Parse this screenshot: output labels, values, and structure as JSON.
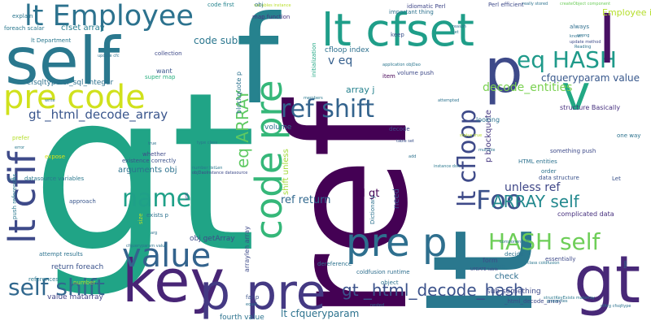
{
  "words": [
    {
      "text": "gt",
      "color": "#20a486"
    },
    {
      "text": "ref",
      "color": "#440154"
    },
    {
      "text": "lt",
      "color": "#2a788e"
    },
    {
      "text": "f",
      "color": "#26828e"
    },
    {
      "text": "lt Employee",
      "color": "#2c728e"
    },
    {
      "text": "self",
      "color": "#2a788e"
    },
    {
      "text": "pre code",
      "color": "#d0e11c"
    },
    {
      "text": "key",
      "color": "#482576"
    },
    {
      "text": "p pre",
      "color": "#443983"
    },
    {
      "text": "ref shift",
      "color": "#33638d"
    },
    {
      "text": "value",
      "color": "#33638d"
    },
    {
      "text": "code pre",
      "color": "#35b779"
    },
    {
      "text": "HASH self",
      "color": "#6ece58"
    },
    {
      "text": "Foo",
      "color": "#3b528b"
    },
    {
      "text": "name",
      "color": "#1fa088"
    },
    {
      "text": "lt cfif",
      "color": "#3e4a89"
    },
    {
      "text": "self shift",
      "color": "#31688e"
    },
    {
      "text": "lt cfset",
      "color": "#1f9e89"
    },
    {
      "text": "lt cfloop",
      "color": "#3e4a89"
    },
    {
      "text": "eq HASH",
      "color": "#1f9a8a"
    },
    {
      "text": "v",
      "color": "#22a884"
    },
    {
      "text": "p",
      "color": "#3e4a89"
    },
    {
      "text": "l",
      "color": "#471063"
    },
    {
      "text": "gt",
      "color": "#482878"
    },
    {
      "text": "gt _html_decode_array",
      "color": "#39558c"
    },
    {
      "text": "gt _html_decode_hash",
      "color": "#3b528b"
    },
    {
      "text": "pre p",
      "color": "#2e6f8e"
    },
    {
      "text": "ARRAY self",
      "color": "#23898e"
    },
    {
      "text": "eq ARRAY",
      "color": "#5ec962"
    },
    {
      "text": "cfqueryparam value",
      "color": "#38588c"
    },
    {
      "text": "decode_entities",
      "color": "#7ad151"
    },
    {
      "text": "unless ref",
      "color": "#3f4788"
    },
    {
      "text": "id gt",
      "color": "#440154"
    },
    {
      "text": "lt cfqueryparam",
      "color": "#2c728e"
    },
    {
      "text": "ref return",
      "color": "#31688e"
    },
    {
      "text": "obj getArray",
      "color": "#3e4c8a"
    },
    {
      "text": "arguments obj",
      "color": "#2c728e"
    },
    {
      "text": "value matarray",
      "color": "#414487"
    },
    {
      "text": "return foreach",
      "color": "#3b528b"
    },
    {
      "text": "code sub",
      "color": "#2a768e"
    },
    {
      "text": "cfset array",
      "color": "#287d8e"
    },
    {
      "text": "lt Department",
      "color": "#2a788e"
    },
    {
      "text": "cfsqltype cf_sql_integer",
      "color": "#2d708e"
    },
    {
      "text": "Employee id",
      "color": "#b5de2b"
    },
    {
      "text": "array j",
      "color": "#26828e"
    },
    {
      "text": "v eq",
      "color": "#355f8d"
    },
    {
      "text": "cfloop index",
      "color": "#2d708e"
    },
    {
      "text": "map function",
      "color": "#46327e"
    },
    {
      "text": "volume",
      "color": "#2c728e"
    },
    {
      "text": "need",
      "color": "#3b528b"
    },
    {
      "text": "shift unless",
      "color": "#a2da37"
    },
    {
      "text": "sub something",
      "color": "#3e4a89"
    },
    {
      "text": "fourth value",
      "color": "#2c728e"
    },
    {
      "text": "check",
      "color": "#2e6e8e"
    },
    {
      "text": "HTML entities",
      "color": "#2c728e"
    },
    {
      "text": "p blockquote",
      "color": "#453781"
    },
    {
      "text": "data structure",
      "color": "#3b528b"
    },
    {
      "text": "structure Basically",
      "color": "#46307e"
    },
    {
      "text": "idiomatic Perl",
      "color": "#3f4788"
    },
    {
      "text": "Perl efficient",
      "color": "#3e4a89"
    },
    {
      "text": "important thing",
      "color": "#2c728e"
    },
    {
      "text": "variables instance",
      "color": "#b8de29"
    },
    {
      "text": "code first",
      "color": "#25848e"
    },
    {
      "text": "createObject component",
      "color": "#6ccd5a"
    },
    {
      "text": "always",
      "color": "#2e6e8e"
    },
    {
      "text": "explain",
      "color": "#2a768e"
    },
    {
      "text": "foreach scalar",
      "color": "#2a788e"
    },
    {
      "text": "super map",
      "color": "#29af7f"
    },
    {
      "text": "want",
      "color": "#39558c"
    },
    {
      "text": "collection",
      "color": "#3e4a89"
    },
    {
      "text": "update cfc",
      "color": "#2c728e"
    },
    {
      "text": "initialization",
      "color": "#22a884"
    },
    {
      "text": "blockquote p",
      "color": "#2c728e"
    },
    {
      "text": "item",
      "color": "#440154"
    },
    {
      "text": "keep",
      "color": "#3b528b"
    },
    {
      "text": "obj",
      "color": "#2c728e"
    },
    {
      "text": "decode",
      "color": "#3e4a89"
    },
    {
      "text": "looking",
      "color": "#2c728e"
    },
    {
      "text": "prefer",
      "color": "#b5de2b"
    },
    {
      "text": "expose",
      "color": "#d8e219"
    },
    {
      "text": "whether",
      "color": "#3e4a89"
    },
    {
      "text": "existence correctly",
      "color": "#3b528b"
    },
    {
      "text": "type class",
      "color": "#2a768e"
    },
    {
      "text": "push references",
      "color": "#2a788e"
    },
    {
      "text": "list",
      "color": "#2c728e"
    },
    {
      "text": "datasource variables",
      "color": "#2a788e"
    },
    {
      "text": "approach",
      "color": "#39568c"
    },
    {
      "text": "exists p",
      "color": "#2c728e"
    },
    {
      "text": "size",
      "color": "#b8de29"
    },
    {
      "text": "number",
      "color": "#addc30"
    },
    {
      "text": "references",
      "color": "#2a788e"
    },
    {
      "text": "attempt results",
      "color": "#2c728e"
    },
    {
      "text": "arraylen array",
      "color": "#3e4a89"
    },
    {
      "text": "far p",
      "color": "#3b528b"
    },
    {
      "text": "coldfusion runtime",
      "color": "#2e6e8e"
    },
    {
      "text": "object",
      "color": "#2c728e"
    },
    {
      "text": "form",
      "color": "#3e4a89"
    },
    {
      "text": "decide",
      "color": "#2c728e"
    },
    {
      "text": "essentially",
      "color": "#3e4a89"
    },
    {
      "text": "component cfc",
      "color": "#2c728e"
    },
    {
      "text": "class coldfusion",
      "color": "#2a768e"
    },
    {
      "text": "complicated data",
      "color": "#46307e"
    },
    {
      "text": "order",
      "color": "#2c728e"
    },
    {
      "text": "one way",
      "color": "#2c728e"
    },
    {
      "text": "something push",
      "color": "#3e4a89"
    },
    {
      "text": "Let",
      "color": "#3b528b"
    },
    {
      "text": "instance dsn",
      "color": "#2a788e"
    },
    {
      "text": "Dictionary",
      "color": "#2c728e"
    },
    {
      "text": "dereference",
      "color": "#2c728e"
    },
    {
      "text": "attempted",
      "color": "#2c728e"
    },
    {
      "text": "members",
      "color": "#2a788e"
    },
    {
      "text": "application objDao",
      "color": "#2a768e"
    },
    {
      "text": "volume push",
      "color": "#3e4a89"
    },
    {
      "text": "true",
      "color": "#2c728e"
    },
    {
      "text": "error",
      "color": "#2a788e"
    },
    {
      "text": "arg",
      "color": "#2c728e"
    },
    {
      "text": "UPDATE table",
      "color": "#3e4a89"
    },
    {
      "text": "multiple",
      "color": "#2c728e"
    },
    {
      "text": "add",
      "color": "#2c728e"
    },
    {
      "text": "table set",
      "color": "#3b528b"
    },
    {
      "text": "status true",
      "color": "#b8de29"
    },
    {
      "text": "two",
      "color": "#2c728e"
    },
    {
      "text": "set",
      "color": "#2a788e"
    },
    {
      "text": "write",
      "color": "#2c728e"
    },
    {
      "text": "known",
      "color": "#2c728e"
    },
    {
      "text": "really stored",
      "color": "#2c728e"
    },
    {
      "text": "update method",
      "color": "#3e4a89"
    },
    {
      "text": "wrong",
      "color": "#2c728e"
    },
    {
      "text": "Reading",
      "color": "#2c728e"
    },
    {
      "text": "reason",
      "color": "#2c728e"
    },
    {
      "text": "still",
      "color": "#3e4a89"
    },
    {
      "text": "number listLen",
      "color": "#2a788e"
    },
    {
      "text": "objDaoInstance datasource",
      "color": "#3e4a89"
    },
    {
      "text": "nested",
      "color": "#2c728e"
    },
    {
      "text": "equal",
      "color": "#2c728e"
    },
    {
      "text": "_html_decode_array",
      "color": "#3e4a89"
    },
    {
      "text": "sub",
      "color": "#2a768e"
    },
    {
      "text": "cfqueryparam value",
      "color": "#2c728e"
    },
    {
      "text": "properties",
      "color": "#2c728e"
    },
    {
      "text": "cfArg cfsqltype",
      "color": "#2c728e"
    },
    {
      "text": "structKeyExists matarray",
      "color": "#2a788e"
    }
  ]
}
